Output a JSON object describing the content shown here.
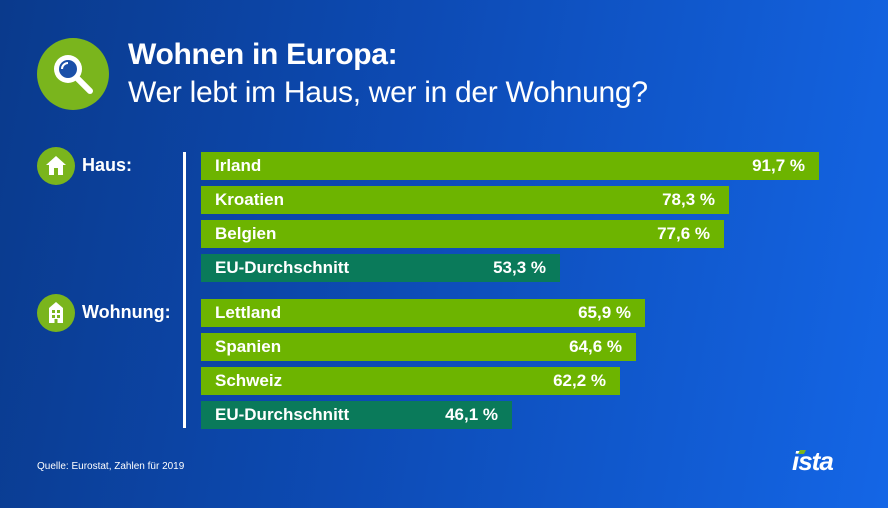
{
  "header": {
    "title_line1": "Wohnen in Europa:",
    "title_line2": "Wer lebt im Haus, wer in der Wohnung?",
    "icon": "magnifier-icon"
  },
  "groups": {
    "house": {
      "label": "Haus:",
      "icon": "house-icon"
    },
    "apartment": {
      "label": "Wohnung:",
      "icon": "apartment-building-icon"
    }
  },
  "colors": {
    "country_bar": "#6db400",
    "average_bar": "#0a7a5a",
    "icon_bg": "#7ab51d",
    "background_start": "#0a3a8c",
    "background_end": "#1466e6"
  },
  "chart_data": {
    "type": "bar",
    "orientation": "horizontal",
    "unit": "%",
    "xlim": [
      0,
      100
    ],
    "grid": false,
    "categories": [
      "Irland",
      "Kroatien",
      "Belgien",
      "EU-Durchschnitt",
      "Lettland",
      "Spanien",
      "Schweiz",
      "EU-Durchschnitt"
    ],
    "values": [
      91.7,
      78.3,
      77.6,
      53.3,
      65.9,
      64.6,
      62.2,
      46.1
    ],
    "value_labels": [
      "91,7 %",
      "78,3 %",
      "77,6 %",
      "53,3 %",
      "65,9 %",
      "64,6 %",
      "62,2 %",
      "46,1 %"
    ],
    "groups": [
      "Haus",
      "Haus",
      "Haus",
      "Haus",
      "Wohnung",
      "Wohnung",
      "Wohnung",
      "Wohnung"
    ],
    "is_average": [
      false,
      false,
      false,
      true,
      false,
      false,
      false,
      true
    ]
  },
  "footer": {
    "source": "Quelle: Eurostat, Zahlen für 2019",
    "logo_text": "ista"
  }
}
